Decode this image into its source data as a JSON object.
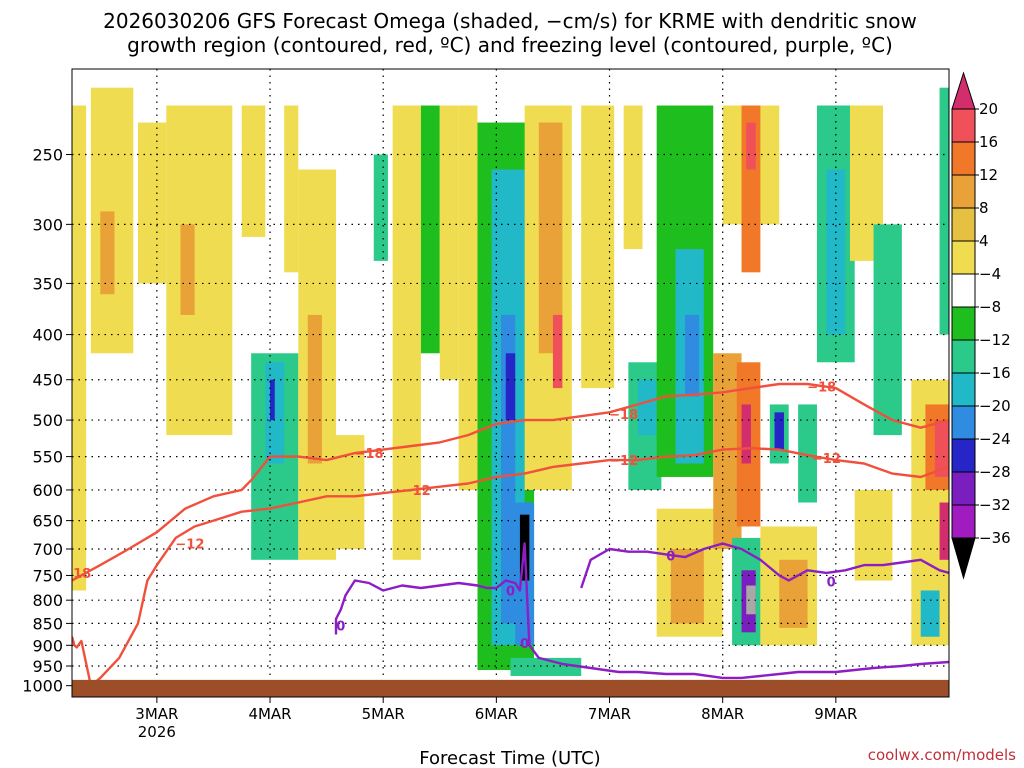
{
  "chart_data": {
    "type": "heatmap",
    "title_line1": "2026030206 GFS Forecast Omega (shaded, −cm/s) for KRME with dendritic snow",
    "title_line2": "growth region (contoured, red, ºC) and freezing level (contoured, purple, ºC)",
    "xlabel": "Forecast Time (UTC)",
    "ylabel": "",
    "credit": "coolwx.com/models",
    "x_range_hours": [
      0,
      186
    ],
    "x_ticks": [
      {
        "label": "3MAR",
        "sublabel": "2026",
        "hour": 18
      },
      {
        "label": "4MAR",
        "sublabel": "",
        "hour": 42
      },
      {
        "label": "5MAR",
        "sublabel": "",
        "hour": 66
      },
      {
        "label": "6MAR",
        "sublabel": "",
        "hour": 90
      },
      {
        "label": "7MAR",
        "sublabel": "",
        "hour": 114
      },
      {
        "label": "8MAR",
        "sublabel": "",
        "hour": 138
      },
      {
        "label": "9MAR",
        "sublabel": "",
        "hour": 162
      }
    ],
    "y_ticks": [
      "250",
      "300",
      "350",
      "400",
      "450",
      "500",
      "550",
      "600",
      "650",
      "700",
      "750",
      "800",
      "850",
      "900",
      "950",
      "1000"
    ],
    "y_range_hpa": [
      200,
      1030
    ],
    "surface_pressure_hpa": 985,
    "colorbar": {
      "labels": [
        "20",
        "16",
        "12",
        "8",
        "4",
        "−4",
        "−8",
        "−12",
        "−16",
        "−20",
        "−24",
        "−28",
        "−32",
        "−36"
      ],
      "colors": [
        "#d22e6e",
        "#f0505a",
        "#f07828",
        "#e8a238",
        "#e6c040",
        "#f0dc50",
        "#ffffff",
        "#1ebe1e",
        "#2bc98a",
        "#21b8c8",
        "#2f8ce0",
        "#2525c8",
        "#7a1ec0",
        "#a01cc0",
        "#a8a8a8",
        "#000000"
      ]
    },
    "omega_cells": [
      {
        "t": [
          0,
          3
        ],
        "p": [
          220,
          780
        ],
        "v": 5
      },
      {
        "t": [
          4,
          13
        ],
        "p": [
          210,
          420
        ],
        "v": 6
      },
      {
        "t": [
          6,
          9
        ],
        "p": [
          290,
          360
        ],
        "v": 9
      },
      {
        "t": [
          14,
          20
        ],
        "p": [
          230,
          350
        ],
        "v": 5
      },
      {
        "t": [
          20,
          34
        ],
        "p": [
          220,
          520
        ],
        "v": 5
      },
      {
        "t": [
          23,
          26
        ],
        "p": [
          300,
          380
        ],
        "v": 9
      },
      {
        "t": [
          36,
          41
        ],
        "p": [
          220,
          310
        ],
        "v": 5
      },
      {
        "t": [
          38,
          48
        ],
        "p": [
          420,
          720
        ],
        "v": -8
      },
      {
        "t": [
          41,
          45
        ],
        "p": [
          430,
          560
        ],
        "v": -14
      },
      {
        "t": [
          42,
          43
        ],
        "p": [
          450,
          500
        ],
        "v": -22
      },
      {
        "t": [
          45,
          48
        ],
        "p": [
          220,
          340
        ],
        "v": 5
      },
      {
        "t": [
          48,
          56
        ],
        "p": [
          260,
          720
        ],
        "v": 5
      },
      {
        "t": [
          50,
          53
        ],
        "p": [
          380,
          560
        ],
        "v": 10
      },
      {
        "t": [
          56,
          62
        ],
        "p": [
          520,
          700
        ],
        "v": 5
      },
      {
        "t": [
          68,
          74
        ],
        "p": [
          220,
          720
        ],
        "v": 5
      },
      {
        "t": [
          64,
          67
        ],
        "p": [
          250,
          330
        ],
        "v": -8
      },
      {
        "t": [
          74,
          78
        ],
        "p": [
          220,
          420
        ],
        "v": -6
      },
      {
        "t": [
          78,
          82
        ],
        "p": [
          220,
          450
        ],
        "v": 5
      },
      {
        "t": [
          82,
          86
        ],
        "p": [
          220,
          600
        ],
        "v": 5
      },
      {
        "t": [
          86,
          98
        ],
        "p": [
          230,
          960
        ],
        "v": -7
      },
      {
        "t": [
          89,
          96
        ],
        "p": [
          260,
          900
        ],
        "v": -13
      },
      {
        "t": [
          91,
          94
        ],
        "p": [
          380,
          850
        ],
        "v": -17
      },
      {
        "t": [
          92,
          94
        ],
        "p": [
          420,
          500
        ],
        "v": -23
      },
      {
        "t": [
          94,
          98
        ],
        "p": [
          620,
          900
        ],
        "v": -16
      },
      {
        "t": [
          95,
          97
        ],
        "p": [
          640,
          760
        ],
        "v": -38
      },
      {
        "t": [
          93,
          108
        ],
        "p": [
          930,
          975
        ],
        "v": -8
      },
      {
        "t": [
          96,
          106
        ],
        "p": [
          220,
          600
        ],
        "v": 5
      },
      {
        "t": [
          99,
          104
        ],
        "p": [
          230,
          420
        ],
        "v": 10
      },
      {
        "t": [
          102,
          104
        ],
        "p": [
          380,
          460
        ],
        "v": 17
      },
      {
        "t": [
          108,
          115
        ],
        "p": [
          220,
          460
        ],
        "v": 5
      },
      {
        "t": [
          117,
          121
        ],
        "p": [
          220,
          320
        ],
        "v": 5
      },
      {
        "t": [
          118,
          125
        ],
        "p": [
          430,
          600
        ],
        "v": -8
      },
      {
        "t": [
          120,
          124
        ],
        "p": [
          450,
          520
        ],
        "v": -13
      },
      {
        "t": [
          124,
          136
        ],
        "p": [
          220,
          580
        ],
        "v": -7
      },
      {
        "t": [
          128,
          134
        ],
        "p": [
          320,
          560
        ],
        "v": -13
      },
      {
        "t": [
          130,
          133
        ],
        "p": [
          380,
          470
        ],
        "v": -17
      },
      {
        "t": [
          124,
          138
        ],
        "p": [
          630,
          880
        ],
        "v": 6
      },
      {
        "t": [
          127,
          134
        ],
        "p": [
          700,
          850
        ],
        "v": 10
      },
      {
        "t": [
          138,
          150
        ],
        "p": [
          220,
          300
        ],
        "v": 6
      },
      {
        "t": [
          142,
          146
        ],
        "p": [
          220,
          340
        ],
        "v": 12
      },
      {
        "t": [
          143,
          145
        ],
        "p": [
          230,
          260
        ],
        "v": 17
      },
      {
        "t": [
          136,
          142
        ],
        "p": [
          420,
          700
        ],
        "v": 10
      },
      {
        "t": [
          141,
          146
        ],
        "p": [
          430,
          660
        ],
        "v": 14
      },
      {
        "t": [
          142,
          144
        ],
        "p": [
          480,
          560
        ],
        "v": 22
      },
      {
        "t": [
          148,
          152
        ],
        "p": [
          480,
          560
        ],
        "v": -8
      },
      {
        "t": [
          149,
          151
        ],
        "p": [
          490,
          540
        ],
        "v": -22
      },
      {
        "t": [
          140,
          146
        ],
        "p": [
          680,
          900
        ],
        "v": -11
      },
      {
        "t": [
          142,
          145
        ],
        "p": [
          740,
          870
        ],
        "v": -27
      },
      {
        "t": [
          143,
          145
        ],
        "p": [
          770,
          830
        ],
        "v": -33
      },
      {
        "t": [
          146,
          158
        ],
        "p": [
          660,
          900
        ],
        "v": 7
      },
      {
        "t": [
          150,
          156
        ],
        "p": [
          720,
          860
        ],
        "v": 10
      },
      {
        "t": [
          158,
          166
        ],
        "p": [
          220,
          430
        ],
        "v": -8
      },
      {
        "t": [
          160,
          164
        ],
        "p": [
          260,
          400
        ],
        "v": -13
      },
      {
        "t": [
          154,
          158
        ],
        "p": [
          480,
          620
        ],
        "v": -10
      },
      {
        "t": [
          165,
          172
        ],
        "p": [
          220,
          330
        ],
        "v": 5
      },
      {
        "t": [
          166,
          174
        ],
        "p": [
          600,
          760
        ],
        "v": 6
      },
      {
        "t": [
          170,
          176
        ],
        "p": [
          300,
          520
        ],
        "v": -8
      },
      {
        "t": [
          178,
          186
        ],
        "p": [
          450,
          900
        ],
        "v": 6
      },
      {
        "t": [
          181,
          186
        ],
        "p": [
          480,
          600
        ],
        "v": 12
      },
      {
        "t": [
          183,
          186
        ],
        "p": [
          500,
          580
        ],
        "v": 19
      },
      {
        "t": [
          184,
          186
        ],
        "p": [
          620,
          720
        ],
        "v": 22
      },
      {
        "t": [
          184,
          186
        ],
        "p": [
          210,
          400
        ],
        "v": -9
      },
      {
        "t": [
          180,
          184
        ],
        "p": [
          780,
          880
        ],
        "v": -12
      }
    ],
    "dgz_contours": [
      {
        "label": "-18",
        "color": "#f0503c",
        "t": [
          0,
          6,
          12,
          18,
          24,
          30,
          36,
          38,
          42,
          48,
          54,
          60,
          66,
          72,
          78,
          84,
          90,
          96,
          102,
          108,
          114,
          120,
          126,
          132,
          138,
          144,
          150,
          156,
          162,
          168,
          174,
          180,
          186
        ],
        "p": [
          760,
          730,
          700,
          670,
          630,
          610,
          600,
          585,
          550,
          550,
          555,
          545,
          540,
          535,
          530,
          520,
          505,
          500,
          500,
          495,
          490,
          480,
          470,
          468,
          465,
          460,
          455,
          455,
          460,
          480,
          500,
          510,
          500
        ],
        "label_positions": [
          [
            1,
            745
          ],
          [
            63,
            545
          ],
          [
            117,
            492
          ],
          [
            159,
            458
          ]
        ]
      },
      {
        "label": "-12",
        "color": "#f0503c",
        "t": [
          0,
          0.5,
          1,
          2,
          4,
          6,
          10,
          14,
          16,
          18,
          22,
          26,
          30,
          36,
          42,
          48,
          54,
          60,
          66,
          72,
          78,
          84,
          90,
          96,
          102,
          108,
          114,
          120,
          126,
          132,
          138,
          144,
          150,
          156,
          162,
          168,
          174,
          180,
          186
        ],
        "p": [
          880,
          900,
          905,
          890,
          1000,
          980,
          930,
          850,
          760,
          730,
          680,
          660,
          650,
          635,
          630,
          620,
          610,
          610,
          605,
          600,
          595,
          590,
          580,
          575,
          565,
          560,
          555,
          555,
          550,
          548,
          540,
          538,
          540,
          548,
          555,
          560,
          575,
          580,
          565
        ],
        "label_positions": [
          [
            25,
            690
          ],
          [
            73,
            600
          ],
          [
            117,
            555
          ],
          [
            160,
            552
          ]
        ]
      }
    ],
    "freezing_contours": [
      {
        "label": "0",
        "color": "#8c1ec4",
        "t": [
          56,
          56,
          57,
          58,
          60,
          63,
          66,
          70,
          74,
          78,
          82,
          86,
          88,
          90,
          92,
          94,
          95,
          96,
          97,
          99,
          104,
          110,
          116,
          120,
          126,
          132,
          138,
          142,
          146,
          150,
          154,
          158,
          162,
          166,
          170,
          176,
          180,
          186
        ],
        "p": [
          875,
          840,
          820,
          790,
          760,
          765,
          780,
          770,
          775,
          770,
          765,
          770,
          775,
          775,
          760,
          765,
          780,
          690,
          900,
          930,
          945,
          955,
          965,
          965,
          970,
          970,
          980,
          980,
          975,
          970,
          965,
          965,
          965,
          960,
          955,
          950,
          945,
          940
        ],
        "label_positions": [
          [
            57,
            855
          ],
          [
            93,
            780
          ],
          [
            96,
            895
          ]
        ]
      },
      {
        "label": "0",
        "color": "#8c1ec4",
        "t": [
          108,
          110,
          114,
          118,
          122,
          126,
          130,
          134,
          138,
          142,
          146,
          150,
          152,
          156,
          160,
          164,
          168,
          172,
          176,
          180,
          184,
          186
        ],
        "p": [
          775,
          720,
          700,
          705,
          705,
          710,
          715,
          700,
          690,
          700,
          720,
          750,
          760,
          740,
          745,
          740,
          730,
          730,
          725,
          720,
          740,
          745
        ],
        "label_positions": [
          [
            127,
            712
          ],
          [
            161,
            762
          ]
        ]
      }
    ]
  }
}
